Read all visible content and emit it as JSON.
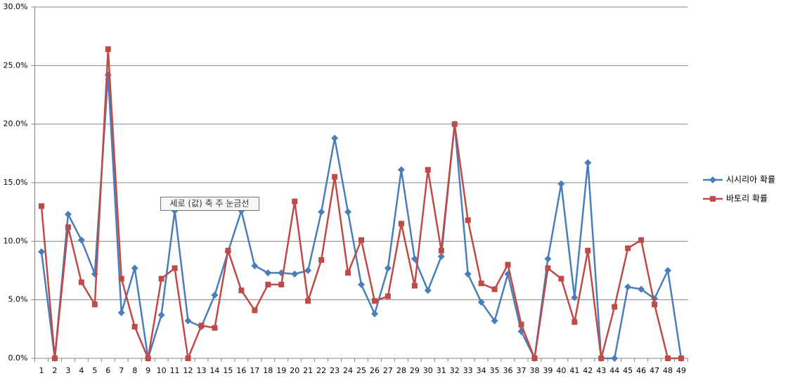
{
  "chart_data": {
    "type": "line",
    "categories": [
      "1",
      "2",
      "3",
      "4",
      "5",
      "6",
      "7",
      "8",
      "9",
      "10",
      "11",
      "12",
      "13",
      "14",
      "15",
      "16",
      "17",
      "18",
      "19",
      "20",
      "21",
      "22",
      "23",
      "24",
      "25",
      "26",
      "27",
      "28",
      "29",
      "30",
      "31",
      "32",
      "33",
      "34",
      "35",
      "36",
      "37",
      "38",
      "39",
      "40",
      "41",
      "42",
      "43",
      "44",
      "45",
      "46",
      "47",
      "48",
      "49"
    ],
    "series": [
      {
        "name": "시시리아 확률",
        "color": "#4a7ebb",
        "marker": "diamond",
        "values": [
          9.1,
          0,
          12.3,
          10.1,
          7.2,
          24.2,
          3.9,
          7.7,
          0,
          3.7,
          12.6,
          3.2,
          2.7,
          5.4,
          9.1,
          12.6,
          7.9,
          7.3,
          7.3,
          7.2,
          7.5,
          12.5,
          18.8,
          12.5,
          6.3,
          3.8,
          7.7,
          16.1,
          8.5,
          5.8,
          8.7,
          20.0,
          7.2,
          4.8,
          3.2,
          7.2,
          2.3,
          0,
          8.5,
          14.9,
          5.2,
          16.7,
          0,
          0,
          6.1,
          5.9,
          5.1,
          7.5,
          0
        ]
      },
      {
        "name": "바토리 확률",
        "color": "#be4b48",
        "marker": "square",
        "values": [
          13.0,
          0,
          11.2,
          6.5,
          4.6,
          26.4,
          6.8,
          2.7,
          0,
          6.8,
          7.7,
          0,
          2.8,
          2.6,
          9.2,
          5.8,
          4.1,
          6.3,
          6.3,
          13.4,
          4.9,
          8.4,
          15.5,
          7.3,
          10.1,
          4.9,
          5.3,
          11.5,
          6.2,
          16.1,
          9.2,
          20.0,
          11.8,
          6.4,
          5.9,
          8.0,
          2.9,
          0,
          7.7,
          6.8,
          3.1,
          9.2,
          0,
          4.4,
          9.4,
          10.1,
          4.6,
          0,
          0
        ]
      }
    ],
    "ylim": [
      0,
      30
    ],
    "yticks": [
      {
        "value": 0,
        "label": "0.0%"
      },
      {
        "value": 5,
        "label": "5.0%"
      },
      {
        "value": 10,
        "label": "10.0%"
      },
      {
        "value": 15,
        "label": "15.0%"
      },
      {
        "value": 20,
        "label": "20.0%"
      },
      {
        "value": 25,
        "label": "25.0%"
      },
      {
        "value": 30,
        "label": "30.0%"
      }
    ],
    "grid": true,
    "legend": "right",
    "tooltip": "세로 (값) 축 주 눈금선"
  }
}
